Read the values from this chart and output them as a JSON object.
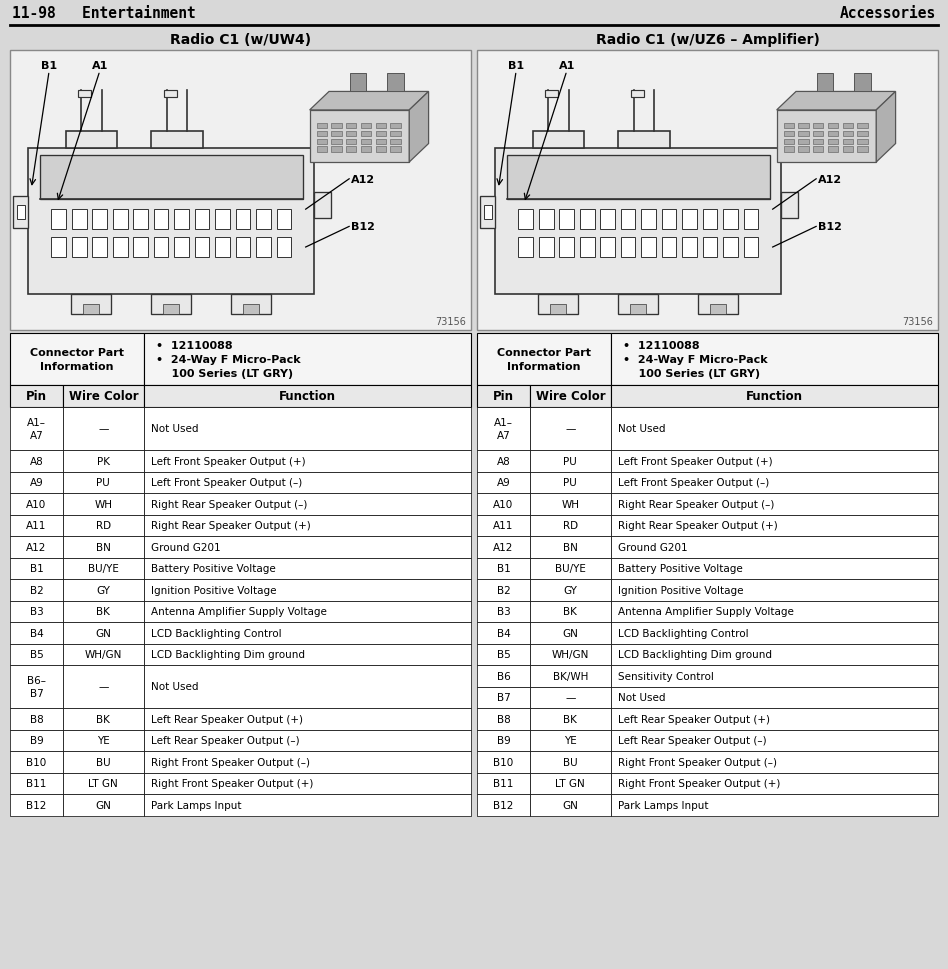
{
  "page_header_left": "11-98   Entertainment",
  "page_header_right": "Accessories",
  "bg_color": "#d8d8d8",
  "left_title": "Radio C1 (w/UW4)",
  "right_title": "Radio C1 (w/UZ6 – Amplifier)",
  "connector_info_bullet1": "12110088",
  "connector_info_bullet2": "24-Way F Micro-Pack",
  "connector_info_bullet3": "100 Series (LT GRY)",
  "diagram_code": "73156",
  "left_table": [
    [
      "A1–\nA7",
      "—",
      "Not Used"
    ],
    [
      "A8",
      "PK",
      "Left Front Speaker Output (+)"
    ],
    [
      "A9",
      "PU",
      "Left Front Speaker Output (–)"
    ],
    [
      "A10",
      "WH",
      "Right Rear Speaker Output (–)"
    ],
    [
      "A11",
      "RD",
      "Right Rear Speaker Output (+)"
    ],
    [
      "A12",
      "BN",
      "Ground G201"
    ],
    [
      "B1",
      "BU/YE",
      "Battery Positive Voltage"
    ],
    [
      "B2",
      "GY",
      "Ignition Positive Voltage"
    ],
    [
      "B3",
      "BK",
      "Antenna Amplifier Supply Voltage"
    ],
    [
      "B4",
      "GN",
      "LCD Backlighting Control"
    ],
    [
      "B5",
      "WH/GN",
      "LCD Backlighting Dim ground"
    ],
    [
      "B6–\nB7",
      "—",
      "Not Used"
    ],
    [
      "B8",
      "BK",
      "Left Rear Speaker Output (+)"
    ],
    [
      "B9",
      "YE",
      "Left Rear Speaker Output (–)"
    ],
    [
      "B10",
      "BU",
      "Right Front Speaker Output (–)"
    ],
    [
      "B11",
      "LT GN",
      "Right Front Speaker Output (+)"
    ],
    [
      "B12",
      "GN",
      "Park Lamps Input"
    ]
  ],
  "right_table": [
    [
      "A1–\nA7",
      "—",
      "Not Used"
    ],
    [
      "A8",
      "PU",
      "Left Front Speaker Output (+)"
    ],
    [
      "A9",
      "PU",
      "Left Front Speaker Output (–)"
    ],
    [
      "A10",
      "WH",
      "Right Rear Speaker Output (–)"
    ],
    [
      "A11",
      "RD",
      "Right Rear Speaker Output (+)"
    ],
    [
      "A12",
      "BN",
      "Ground G201"
    ],
    [
      "B1",
      "BU/YE",
      "Battery Positive Voltage"
    ],
    [
      "B2",
      "GY",
      "Ignition Positive Voltage"
    ],
    [
      "B3",
      "BK",
      "Antenna Amplifier Supply Voltage"
    ],
    [
      "B4",
      "GN",
      "LCD Backlighting Control"
    ],
    [
      "B5",
      "WH/GN",
      "LCD Backlighting Dim ground"
    ],
    [
      "B6",
      "BK/WH",
      "Sensitivity Control"
    ],
    [
      "B7",
      "—",
      "Not Used"
    ],
    [
      "B8",
      "BK",
      "Left Rear Speaker Output (+)"
    ],
    [
      "B9",
      "YE",
      "Left Rear Speaker Output (–)"
    ],
    [
      "B10",
      "BU",
      "Right Front Speaker Output (–)"
    ],
    [
      "B11",
      "LT GN",
      "Right Front Speaker Output (+)"
    ],
    [
      "B12",
      "GN",
      "Park Lamps Input"
    ]
  ]
}
